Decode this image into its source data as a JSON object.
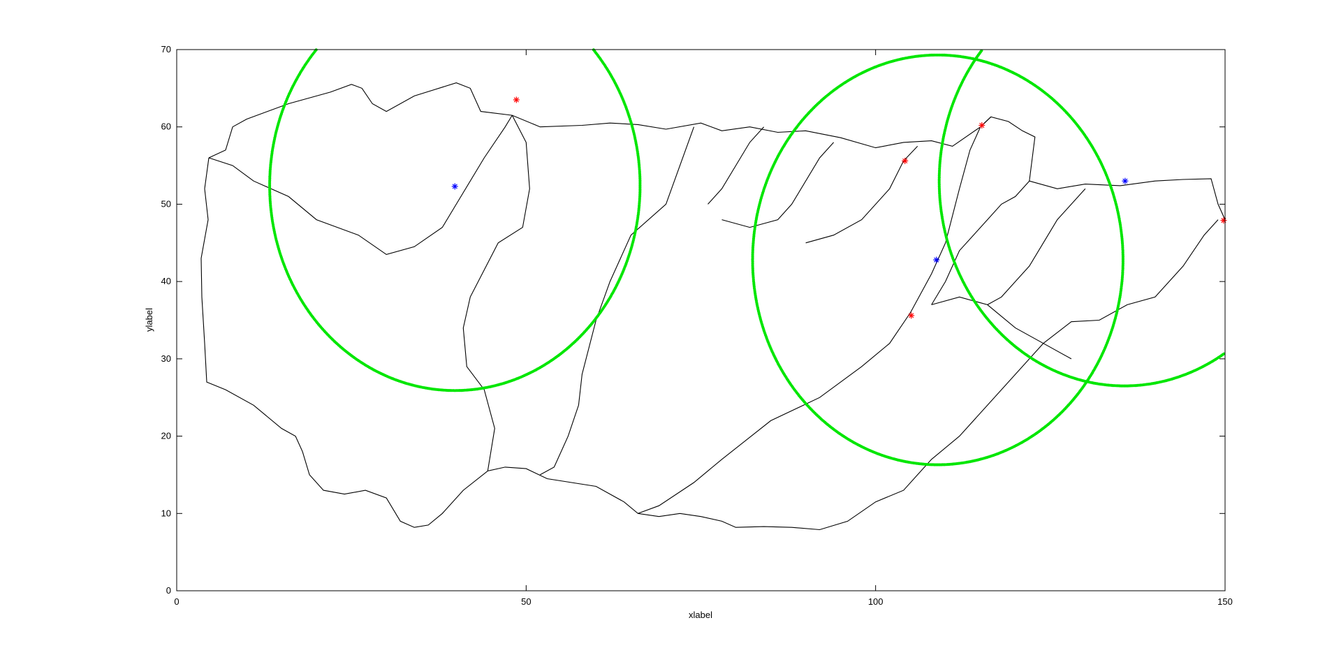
{
  "chart_data": {
    "type": "scatter",
    "title": "",
    "xlabel": "xlabel",
    "ylabel": "ylabel",
    "xlim": [
      0,
      150
    ],
    "ylim": [
      0,
      70
    ],
    "xticks": [
      0,
      50,
      100,
      150
    ],
    "yticks": [
      0,
      10,
      20,
      30,
      40,
      50,
      60,
      70
    ],
    "grid": false,
    "legend": "none",
    "colors": {
      "boundary": "#000000",
      "circle": "#00e600",
      "red_marker": "#ff0000",
      "blue_marker": "#0000ff",
      "axis": "#000000"
    },
    "series": [
      {
        "role": "circles",
        "marker": "dot",
        "color": "#00e600",
        "circles": [
          {
            "center": [
              39.8,
              52.4
            ],
            "r": 26.5
          },
          {
            "center": [
              108.9,
              42.8
            ],
            "r": 26.5
          },
          {
            "center": [
              135.6,
              53.0
            ],
            "r": 26.5
          }
        ]
      },
      {
        "role": "red-points",
        "marker": "*",
        "color": "#ff0000",
        "points": [
          [
            48.6,
            63.5
          ],
          [
            104.2,
            55.6
          ],
          [
            115.2,
            60.2
          ],
          [
            105.1,
            35.6
          ],
          [
            149.8,
            47.9
          ]
        ]
      },
      {
        "role": "blue-points",
        "marker": "*",
        "color": "#0000ff",
        "points": [
          [
            39.8,
            52.3
          ],
          [
            108.7,
            42.8
          ],
          [
            135.7,
            53.0
          ]
        ]
      }
    ],
    "boundaries": [
      [
        [
          4.6,
          56
        ],
        [
          7,
          57
        ],
        [
          8,
          60
        ],
        [
          10,
          61
        ],
        [
          16,
          63
        ],
        [
          22,
          64.5
        ],
        [
          25,
          65.5
        ],
        [
          26.5,
          65
        ],
        [
          28,
          63
        ],
        [
          30,
          62
        ],
        [
          34,
          64
        ],
        [
          40,
          65.7
        ],
        [
          42,
          65
        ],
        [
          43.5,
          62
        ],
        [
          48,
          61.5
        ],
        [
          52,
          60
        ],
        [
          58,
          60.2
        ],
        [
          62,
          60.5
        ],
        [
          66,
          60.3
        ],
        [
          70,
          59.7
        ],
        [
          75,
          60.5
        ],
        [
          78,
          59.5
        ],
        [
          82,
          60
        ],
        [
          86,
          59.3
        ],
        [
          90,
          59.5
        ],
        [
          95,
          58.6
        ],
        [
          100,
          57.3
        ],
        [
          104,
          58
        ],
        [
          108,
          58.2
        ],
        [
          111,
          57.5
        ],
        [
          115,
          60
        ],
        [
          116.5,
          61.3
        ],
        [
          119,
          60.7
        ],
        [
          121,
          59.5
        ],
        [
          122.8,
          58.7
        ],
        [
          122,
          53
        ],
        [
          126,
          52
        ],
        [
          130,
          52.6
        ],
        [
          135,
          52.4
        ],
        [
          140,
          53
        ],
        [
          144,
          53.2
        ],
        [
          148,
          53.3
        ],
        [
          149,
          50
        ],
        [
          150,
          48
        ]
      ],
      [
        [
          4.6,
          56
        ],
        [
          8,
          55
        ],
        [
          11,
          53
        ],
        [
          16,
          51
        ],
        [
          20,
          48
        ],
        [
          26,
          46
        ],
        [
          30,
          43.5
        ],
        [
          34,
          44.5
        ],
        [
          38,
          47
        ],
        [
          40,
          50
        ],
        [
          44,
          56
        ],
        [
          47,
          60
        ],
        [
          48,
          61.5
        ]
      ],
      [
        [
          48,
          61.5
        ],
        [
          50,
          58
        ],
        [
          50.5,
          52
        ],
        [
          49.5,
          47
        ],
        [
          46,
          45
        ],
        [
          44,
          41.5
        ],
        [
          42,
          38
        ],
        [
          41,
          34
        ],
        [
          41.5,
          29
        ],
        [
          44,
          26
        ],
        [
          45.5,
          21
        ],
        [
          44.5,
          15.5
        ],
        [
          47,
          16
        ],
        [
          50,
          15.8
        ],
        [
          53,
          14.5
        ],
        [
          60,
          13.5
        ],
        [
          64,
          11.5
        ],
        [
          66,
          10
        ],
        [
          69,
          11
        ],
        [
          74,
          14
        ],
        [
          78,
          17
        ],
        [
          85,
          22
        ],
        [
          92,
          25
        ],
        [
          98,
          29
        ],
        [
          102,
          32
        ],
        [
          105,
          36
        ],
        [
          108,
          41
        ],
        [
          110,
          45
        ],
        [
          112,
          52
        ],
        [
          113.5,
          57
        ],
        [
          115,
          60
        ],
        [
          116.5,
          61.3
        ]
      ],
      [
        [
          44.5,
          15.5
        ],
        [
          41,
          13
        ],
        [
          38,
          10
        ],
        [
          36,
          8.5
        ],
        [
          34,
          8.2
        ],
        [
          32,
          9
        ],
        [
          30,
          12
        ],
        [
          27,
          13
        ],
        [
          24,
          12.5
        ],
        [
          21,
          13
        ],
        [
          19,
          15
        ],
        [
          18,
          18
        ],
        [
          17,
          20
        ],
        [
          15,
          21
        ],
        [
          11,
          24
        ],
        [
          7,
          26
        ],
        [
          4.3,
          27
        ],
        [
          4,
          32
        ],
        [
          3.6,
          38
        ],
        [
          3.5,
          43
        ],
        [
          4.5,
          48
        ],
        [
          4,
          52
        ],
        [
          4.6,
          56
        ]
      ],
      [
        [
          66,
          10
        ],
        [
          69,
          9.6
        ],
        [
          72,
          10
        ],
        [
          75,
          9.6
        ],
        [
          78,
          9
        ],
        [
          80,
          8.2
        ],
        [
          84,
          8.3
        ],
        [
          88,
          8.2
        ],
        [
          92,
          7.9
        ],
        [
          96,
          9
        ],
        [
          100,
          11.5
        ],
        [
          104,
          13
        ],
        [
          106,
          15
        ],
        [
          108,
          17
        ],
        [
          112,
          20
        ],
        [
          116,
          24
        ],
        [
          120,
          28
        ],
        [
          124,
          32
        ],
        [
          128,
          34.8
        ],
        [
          132,
          35
        ],
        [
          136,
          37
        ],
        [
          140,
          38
        ],
        [
          144,
          42
        ],
        [
          147,
          46
        ],
        [
          149,
          48
        ]
      ],
      [
        [
          62,
          40
        ],
        [
          60,
          35
        ],
        [
          58,
          28
        ],
        [
          57.5,
          24
        ],
        [
          56,
          20
        ],
        [
          54,
          16
        ],
        [
          52,
          15
        ]
      ],
      [
        [
          62,
          40
        ],
        [
          65,
          46
        ],
        [
          70,
          50
        ],
        [
          72,
          55
        ],
        [
          74,
          60
        ]
      ],
      [
        [
          76,
          50
        ],
        [
          78,
          52
        ],
        [
          80,
          55
        ],
        [
          82,
          58
        ],
        [
          84,
          60
        ]
      ],
      [
        [
          78,
          48
        ],
        [
          82,
          47
        ],
        [
          86,
          48
        ],
        [
          88,
          50
        ],
        [
          92,
          56
        ],
        [
          94,
          58
        ]
      ],
      [
        [
          90,
          45
        ],
        [
          94,
          46
        ],
        [
          98,
          48
        ],
        [
          102,
          52
        ],
        [
          104,
          55.6
        ],
        [
          106,
          57.5
        ]
      ],
      [
        [
          108,
          37
        ],
        [
          110,
          40
        ],
        [
          112,
          44
        ],
        [
          114,
          46
        ],
        [
          116,
          48
        ],
        [
          118,
          50
        ],
        [
          120,
          51
        ],
        [
          122,
          53
        ]
      ],
      [
        [
          108,
          37
        ],
        [
          112,
          38
        ],
        [
          116,
          37
        ],
        [
          120,
          34
        ],
        [
          124,
          32
        ],
        [
          128,
          30
        ]
      ],
      [
        [
          116,
          37
        ],
        [
          118,
          38
        ],
        [
          120,
          40
        ],
        [
          122,
          42
        ],
        [
          124,
          45
        ],
        [
          126,
          48
        ],
        [
          128,
          50
        ],
        [
          130,
          52
        ]
      ]
    ]
  }
}
